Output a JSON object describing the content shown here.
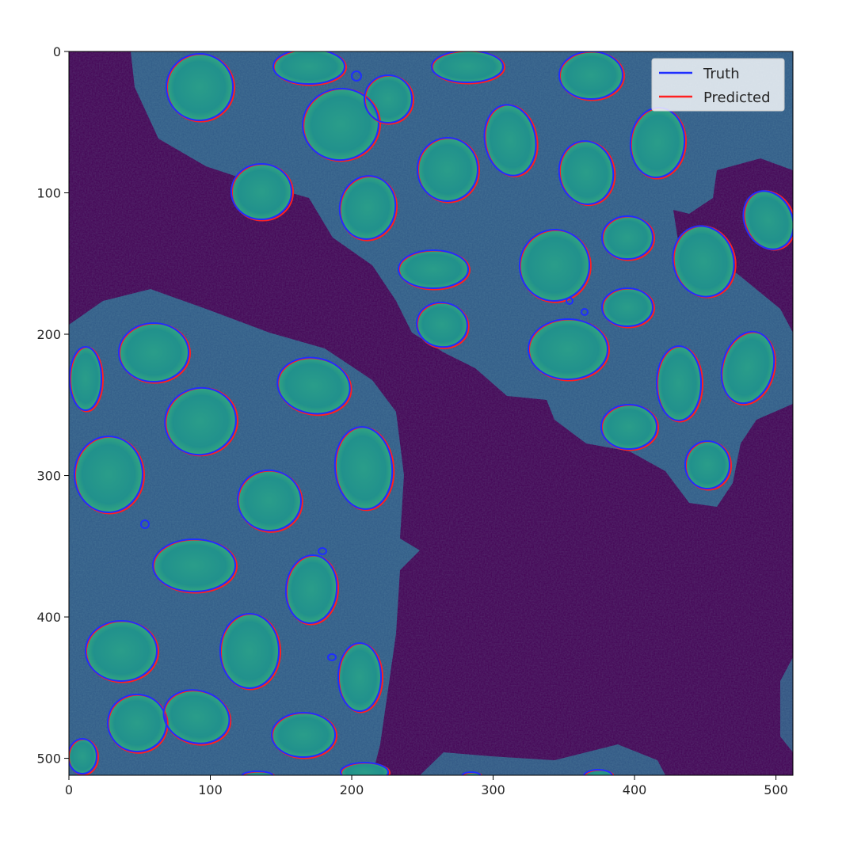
{
  "figure": {
    "image_description_colormap": "viridis",
    "x_axis": {
      "ticks": [
        "0",
        "100",
        "200",
        "300",
        "400",
        "500"
      ]
    },
    "y_axis": {
      "ticks": [
        "0",
        "100",
        "200",
        "300",
        "400",
        "500"
      ]
    },
    "legend": {
      "placement": "top-right",
      "entries": [
        {
          "label": "Truth",
          "color": "#1f2fff"
        },
        {
          "label": "Predicted",
          "color": "#ff2020"
        }
      ]
    }
  },
  "colors": {
    "background": "#440154",
    "cytoplasm": "#31688e",
    "nucleus": "#21918c",
    "bright": "#5ec962",
    "truth": "#1f2fff",
    "predicted": "#ff2020"
  }
}
